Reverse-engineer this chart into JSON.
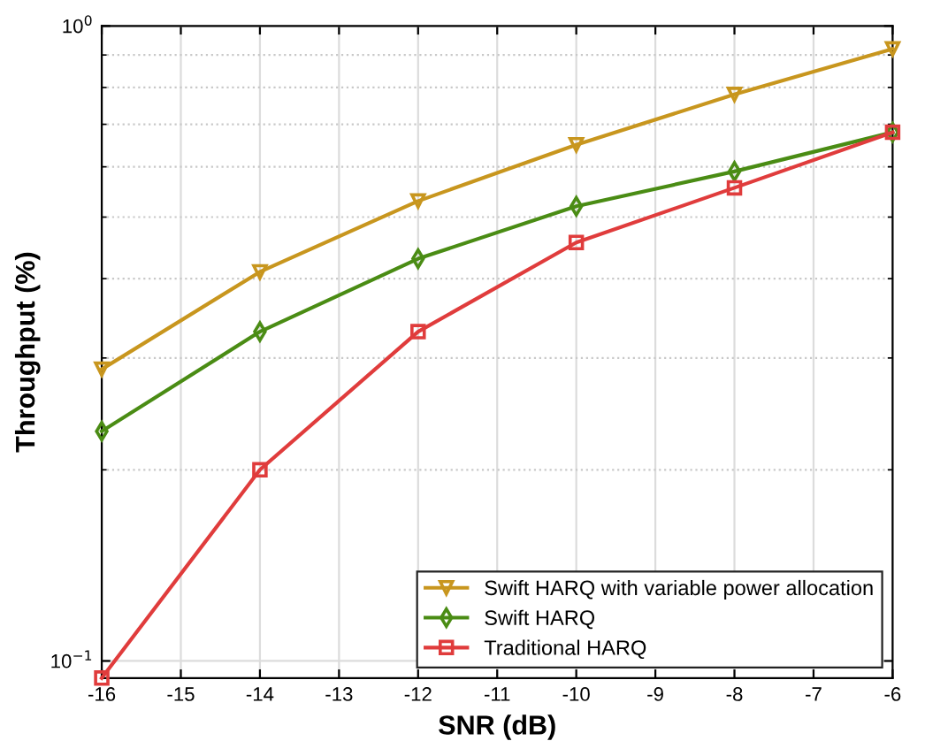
{
  "chart_data": {
    "type": "line",
    "xlabel": "SNR (dB)",
    "ylabel": "Throughput (%)",
    "x": [
      -16,
      -14,
      -12,
      -10,
      -8,
      -6
    ],
    "series": [
      {
        "name": "Swift HARQ with variable power allocation",
        "color": "#c8961e",
        "marker": "triangle",
        "values": [
          0.288,
          0.41,
          0.53,
          0.65,
          0.78,
          0.92
        ]
      },
      {
        "name": "Swift HARQ",
        "color": "#4a8c14",
        "marker": "diamond",
        "values": [
          0.23,
          0.33,
          0.43,
          0.52,
          0.59,
          0.68
        ]
      },
      {
        "name": "Traditional HARQ",
        "color": "#e03c3c",
        "marker": "square",
        "values": [
          0.094,
          0.2,
          0.33,
          0.456,
          0.556,
          0.68
        ]
      }
    ],
    "log": "y",
    "xlim": [
      -16,
      -6
    ],
    "ylim": [
      0.094,
      1
    ],
    "xticks": [
      -16,
      -15,
      -14,
      -13,
      -12,
      -11,
      -10,
      -9,
      -8,
      -7,
      -6
    ],
    "yticks": [
      {
        "value": 0.1,
        "label": "10$^{−1}$"
      },
      {
        "value": 1,
        "label": "10$^{0}$"
      }
    ],
    "grid": true,
    "legend": "bottom right",
    "line_style": "solid"
  }
}
